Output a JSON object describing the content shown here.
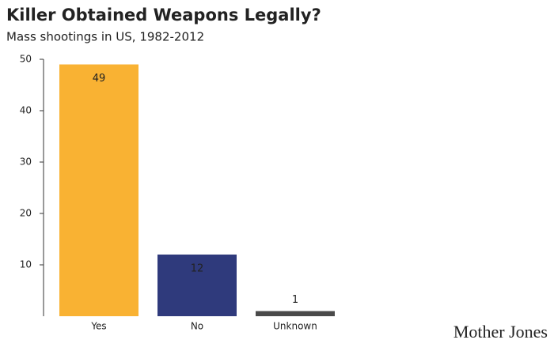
{
  "chart_data": {
    "type": "bar",
    "title": "Killer Obtained Weapons Legally?",
    "subtitle": "Mass shootings in US, 1982-2012",
    "categories": [
      "Yes",
      "No",
      "Unknown"
    ],
    "values": [
      49,
      12,
      1
    ],
    "colors": [
      "#f9b233",
      "#2f3a7c",
      "#4a4a4a"
    ],
    "ylim": [
      0,
      50
    ],
    "yticks": [
      10,
      20,
      30,
      40,
      50
    ],
    "source": "Mother Jones"
  }
}
